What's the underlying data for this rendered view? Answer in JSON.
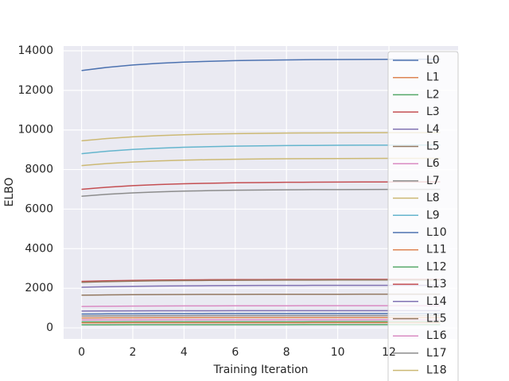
{
  "chart_data": {
    "type": "line",
    "xlabel": "Training Iteration",
    "ylabel": "ELBO",
    "x": [
      0,
      1,
      2,
      3,
      4,
      5,
      6,
      7,
      8,
      9,
      10,
      11,
      12,
      13,
      14
    ],
    "xlim": [
      -0.7,
      14.7
    ],
    "ylim": [
      -560,
      14240
    ],
    "xticks": [
      0,
      2,
      4,
      6,
      8,
      10,
      12
    ],
    "yticks": [
      0,
      2000,
      4000,
      6000,
      8000,
      10000,
      12000,
      14000
    ],
    "grid": true,
    "legend": "upper right",
    "series": [
      {
        "name": "L0",
        "color": "#4c72b0",
        "values": [
          13000,
          13164,
          13282,
          13367,
          13427,
          13470,
          13502,
          13524,
          13540,
          13551,
          13559,
          13565,
          13570,
          13573,
          13575
        ]
      },
      {
        "name": "L1",
        "color": "#dd8452",
        "values": [
          500,
          506,
          510,
          513,
          515,
          516,
          517,
          518,
          519,
          519,
          519,
          519,
          520,
          520,
          520
        ]
      },
      {
        "name": "L2",
        "color": "#55a868",
        "values": [
          300,
          303,
          305,
          306,
          307,
          308,
          309,
          309,
          309,
          310,
          310,
          310,
          310,
          310,
          310
        ]
      },
      {
        "name": "L3",
        "color": "#c44e52",
        "values": [
          7000,
          7108,
          7185,
          7240,
          7280,
          7308,
          7329,
          7343,
          7354,
          7361,
          7366,
          7370,
          7373,
          7375,
          7377
        ]
      },
      {
        "name": "L4",
        "color": "#8172b3",
        "values": [
          2050,
          2078,
          2099,
          2113,
          2124,
          2131,
          2137,
          2140,
          2143,
          2145,
          2146,
          2147,
          2148,
          2149,
          2149
        ]
      },
      {
        "name": "L5",
        "color": "#937860",
        "values": [
          1650,
          1664,
          1674,
          1682,
          1687,
          1691,
          1693,
          1695,
          1697,
          1698,
          1698,
          1699,
          1699,
          1699,
          1700
        ]
      },
      {
        "name": "L6",
        "color": "#da8bc3",
        "values": [
          1080,
          1091,
          1099,
          1105,
          1109,
          1112,
          1115,
          1116,
          1117,
          1118,
          1119,
          1119,
          1119,
          1119,
          1120
        ]
      },
      {
        "name": "L7",
        "color": "#8c8c8c",
        "values": [
          6650,
          6749,
          6820,
          6871,
          6908,
          6934,
          6953,
          6966,
          6976,
          6983,
          6987,
          6991,
          6994,
          6995,
          6997
        ]
      },
      {
        "name": "L8",
        "color": "#ccb974",
        "values": [
          9450,
          9569,
          9655,
          9715,
          9759,
          9791,
          9813,
          9829,
          9841,
          9849,
          9855,
          9859,
          9862,
          9865,
          9866
        ]
      },
      {
        "name": "L9",
        "color": "#64b5cd",
        "values": [
          8800,
          8925,
          9014,
          9078,
          9124,
          9157,
          9181,
          9197,
          9210,
          9218,
          9224,
          9229,
          9232,
          9234,
          9236
        ]
      },
      {
        "name": "L10",
        "color": "#4c72b0",
        "values": [
          700,
          706,
          710,
          713,
          715,
          716,
          717,
          718,
          719,
          719,
          719,
          719,
          720,
          720,
          720
        ]
      },
      {
        "name": "L11",
        "color": "#dd8452",
        "values": [
          250,
          253,
          255,
          256,
          257,
          258,
          259,
          259,
          259,
          260,
          260,
          260,
          260,
          260,
          260
        ]
      },
      {
        "name": "L12",
        "color": "#55a868",
        "values": [
          150,
          153,
          155,
          156,
          157,
          158,
          159,
          159,
          159,
          160,
          160,
          160,
          160,
          160,
          160
        ]
      },
      {
        "name": "L13",
        "color": "#c44e52",
        "values": [
          2350,
          2378,
          2399,
          2413,
          2424,
          2431,
          2437,
          2440,
          2443,
          2445,
          2446,
          2447,
          2448,
          2449,
          2449
        ]
      },
      {
        "name": "L14",
        "color": "#8172b3",
        "values": [
          850,
          856,
          860,
          863,
          865,
          866,
          867,
          868,
          869,
          869,
          869,
          869,
          870,
          870,
          870
        ]
      },
      {
        "name": "L15",
        "color": "#937860",
        "values": [
          2300,
          2334,
          2358,
          2376,
          2388,
          2397,
          2404,
          2408,
          2412,
          2414,
          2416,
          2417,
          2418,
          2418,
          2419
        ]
      },
      {
        "name": "L16",
        "color": "#da8bc3",
        "values": [
          400,
          403,
          405,
          406,
          407,
          408,
          409,
          409,
          409,
          410,
          410,
          410,
          410,
          410,
          410
        ]
      },
      {
        "name": "L17",
        "color": "#8c8c8c",
        "values": [
          600,
          606,
          610,
          613,
          615,
          616,
          617,
          618,
          619,
          619,
          619,
          619,
          620,
          620,
          620
        ]
      },
      {
        "name": "L18",
        "color": "#ccb974",
        "values": [
          8200,
          8305,
          8380,
          8434,
          8472,
          8500,
          8520,
          8534,
          8544,
          8552,
          8557,
          8560,
          8563,
          8565,
          8567
        ]
      }
    ]
  }
}
